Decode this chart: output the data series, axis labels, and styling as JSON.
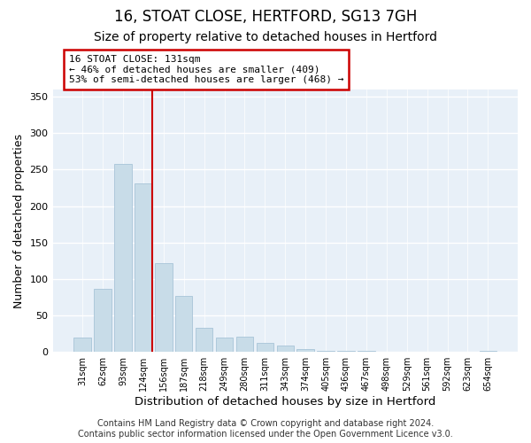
{
  "title": "16, STOAT CLOSE, HERTFORD, SG13 7GH",
  "subtitle": "Size of property relative to detached houses in Hertford",
  "xlabel": "Distribution of detached houses by size in Hertford",
  "ylabel": "Number of detached properties",
  "categories": [
    "31sqm",
    "62sqm",
    "93sqm",
    "124sqm",
    "156sqm",
    "187sqm",
    "218sqm",
    "249sqm",
    "280sqm",
    "311sqm",
    "343sqm",
    "374sqm",
    "405sqm",
    "436sqm",
    "467sqm",
    "498sqm",
    "529sqm",
    "561sqm",
    "592sqm",
    "623sqm",
    "654sqm"
  ],
  "values": [
    20,
    87,
    258,
    231,
    122,
    77,
    33,
    20,
    21,
    12,
    9,
    4,
    2,
    1,
    1,
    0,
    0,
    0,
    0,
    0,
    2
  ],
  "bar_color": "#c8dce8",
  "bar_edge_color": "#a8c4d8",
  "vline_color": "#cc0000",
  "annotation_text": "16 STOAT CLOSE: 131sqm\n← 46% of detached houses are smaller (409)\n53% of semi-detached houses are larger (468) →",
  "annotation_box_edgecolor": "#cc0000",
  "annotation_box_facecolor": "#ffffff",
  "ylim": [
    0,
    360
  ],
  "yticks": [
    0,
    50,
    100,
    150,
    200,
    250,
    300,
    350
  ],
  "footer": "Contains HM Land Registry data © Crown copyright and database right 2024.\nContains public sector information licensed under the Open Government Licence v3.0.",
  "title_fontsize": 12,
  "subtitle_fontsize": 10,
  "xlabel_fontsize": 9.5,
  "ylabel_fontsize": 9,
  "footer_fontsize": 7,
  "bg_color": "#ffffff",
  "plot_bg_color": "#e8f0f8"
}
